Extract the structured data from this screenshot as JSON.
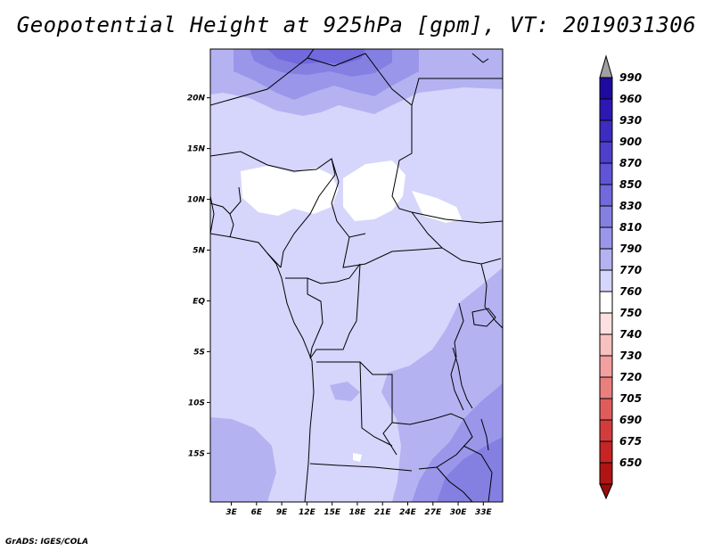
{
  "title": "Geopotential Height at 925hPa [gpm], VT: 2019031306",
  "footer": "GrADS: IGES/COLA",
  "map": {
    "lat_labels": [
      "20N",
      "15N",
      "10N",
      "5N",
      "EQ",
      "5S",
      "10S",
      "15S"
    ],
    "lat_values": [
      20,
      15,
      10,
      5,
      0,
      -5,
      -10,
      -15
    ],
    "lon_labels": [
      "3E",
      "6E",
      "9E",
      "12E",
      "15E",
      "18E",
      "21E",
      "24E",
      "27E",
      "30E",
      "33E"
    ],
    "lon_values": [
      3,
      6,
      9,
      12,
      15,
      18,
      21,
      24,
      27,
      30,
      33
    ],
    "extent": {
      "lon_min": 0.5,
      "lon_max": 35.3,
      "lat_min": -19.8,
      "lat_max": 24.8
    }
  },
  "colorbar": {
    "levels": [
      "990",
      "960",
      "930",
      "900",
      "870",
      "850",
      "830",
      "810",
      "790",
      "770",
      "760",
      "750",
      "740",
      "730",
      "720",
      "705",
      "690",
      "675",
      "650"
    ],
    "colors": [
      "#1f0aa0",
      "#2e18b4",
      "#3d2cc0",
      "#4e40cb",
      "#5f55d6",
      "#7169dc",
      "#8480e2",
      "#9a96ea",
      "#b5b2f1",
      "#d6d5fb",
      "#ffffff",
      "#fde0e0",
      "#f8c0c0",
      "#f2a0a0",
      "#ea7f7f",
      "#e05c5c",
      "#d33c3c",
      "#c52525",
      "#b01414"
    ],
    "top_arrow_color": "#a0a0a0",
    "bottom_arrow_color": "#9c0b0b"
  },
  "fills": {
    "base": "#d6d5fb",
    "light": "#ffffff",
    "level790": "#b5b2f1",
    "level810": "#9a96ea",
    "level830": "#8480e2",
    "level850": "#7169dc"
  }
}
